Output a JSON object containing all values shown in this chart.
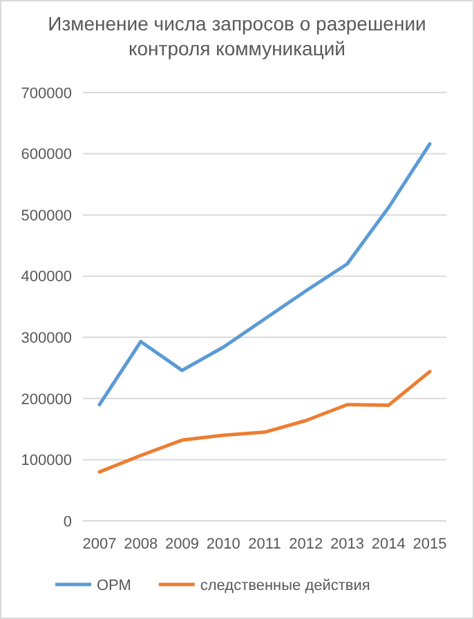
{
  "chart_data": {
    "type": "line",
    "title": "Изменение числа запросов о разрешении контроля коммуникаций",
    "categories": [
      "2007",
      "2008",
      "2009",
      "2010",
      "2011",
      "2012",
      "2013",
      "2014",
      "2015"
    ],
    "series": [
      {
        "name": "ОРМ",
        "color": "#5b9bd5",
        "values": [
          190000,
          293000,
          246000,
          284000,
          330000,
          376000,
          420000,
          512000,
          616000
        ]
      },
      {
        "name": "следственные действия",
        "color": "#ed7d31",
        "values": [
          80000,
          107000,
          132000,
          140000,
          145000,
          164000,
          190000,
          189000,
          244000
        ]
      }
    ],
    "ylim": [
      0,
      700000
    ],
    "yticks": [
      0,
      100000,
      200000,
      300000,
      400000,
      500000,
      600000,
      700000
    ],
    "grid": "y",
    "legend": "bottom",
    "marker": "none",
    "line_style": "solid"
  }
}
